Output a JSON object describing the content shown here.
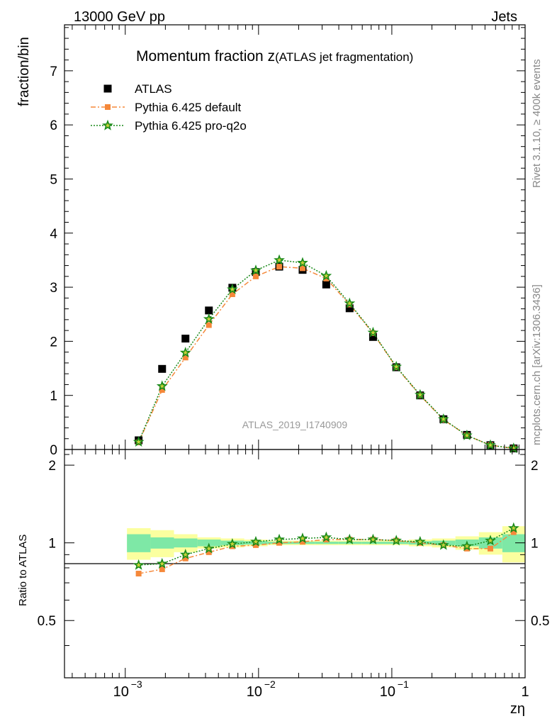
{
  "header": {
    "left": "13000 GeV pp",
    "right": "Jets"
  },
  "side_labels": {
    "rivet": "Rivet 3.1.10, ≥ 400k events",
    "mcplots": "mcplots.cern.ch [arXiv:1306.3436]"
  },
  "chart_data": [
    {
      "type": "scatter",
      "panel": "main",
      "title_main": "Momentum fraction z",
      "title_sub": "(ATLAS jet fragmentation)",
      "watermark": "ATLAS_2019_I1740909",
      "ylabel": "fraction/bin",
      "xlabel": "zη",
      "xscale": "log",
      "xlim": [
        0.00035,
        1.0
      ],
      "ylim": [
        0,
        7.85
      ],
      "yticks": [
        0,
        1,
        2,
        3,
        4,
        5,
        6,
        7
      ],
      "ytick_labels": [
        "0",
        "1",
        "2",
        "3",
        "4",
        "5",
        "6",
        "7"
      ],
      "x": [
        0.00126,
        0.00189,
        0.00283,
        0.00424,
        0.00636,
        0.00954,
        0.0143,
        0.0214,
        0.0322,
        0.0482,
        0.0723,
        0.108,
        0.163,
        0.244,
        0.366,
        0.549,
        0.82
      ],
      "legend_position": "top-left",
      "series": [
        {
          "name": "ATLAS",
          "color": "#000000",
          "marker": "square",
          "values": [
            0.17,
            1.49,
            2.05,
            2.57,
            2.99,
            3.28,
            3.38,
            3.32,
            3.05,
            2.61,
            2.08,
            1.52,
            1.0,
            0.56,
            0.27,
            0.08,
            0.02
          ]
        },
        {
          "name": "Pythia 6.425 default",
          "color": "#f5883a",
          "marker": "square",
          "line": "dashdot",
          "values": [
            0.13,
            1.1,
            1.7,
            2.3,
            2.87,
            3.2,
            3.38,
            3.35,
            3.16,
            2.68,
            2.15,
            1.52,
            1.0,
            0.55,
            0.26,
            0.08,
            0.02
          ]
        },
        {
          "name": "Pythia 6.425 pro-q2o",
          "color": "#1a8a1a",
          "marker": "star",
          "line": "dotted",
          "values": [
            0.14,
            1.17,
            1.79,
            2.41,
            2.96,
            3.31,
            3.5,
            3.45,
            3.21,
            2.7,
            2.16,
            1.53,
            1.01,
            0.56,
            0.26,
            0.08,
            0.02
          ]
        }
      ]
    },
    {
      "type": "line",
      "panel": "ratio",
      "ylabel": "Ratio to ATLAS",
      "xscale": "log",
      "xlim": [
        0.00035,
        1.0
      ],
      "ylim": [
        0.3,
        2.3
      ],
      "yticks": [
        0.5,
        1,
        2
      ],
      "ytick_labels": [
        "0.5",
        "1",
        "2"
      ],
      "xticks": [
        0.001,
        0.01,
        0.1,
        1
      ],
      "xtick_labels": [
        "10",
        "10",
        "10",
        "1"
      ],
      "xtick_exponents": [
        "−3",
        "−2",
        "−1",
        ""
      ],
      "x": [
        0.00126,
        0.00189,
        0.00283,
        0.00424,
        0.00636,
        0.00954,
        0.0143,
        0.0214,
        0.0322,
        0.0482,
        0.0723,
        0.108,
        0.163,
        0.244,
        0.366,
        0.549,
        0.82
      ],
      "x_edges": [
        0.00103,
        0.00155,
        0.00232,
        0.00348,
        0.00521,
        0.00782,
        0.0117,
        0.0176,
        0.0264,
        0.0396,
        0.0594,
        0.0891,
        0.134,
        0.2,
        0.3,
        0.45,
        0.675,
        1.0
      ],
      "band_inner": [
        0.08,
        0.05,
        0.04,
        0.03,
        0.02,
        0.015,
        0.01,
        0.01,
        0.01,
        0.01,
        0.01,
        0.01,
        0.015,
        0.02,
        0.03,
        0.05,
        0.08
      ],
      "band_outer": [
        0.14,
        0.12,
        0.08,
        0.05,
        0.04,
        0.03,
        0.02,
        0.02,
        0.02,
        0.02,
        0.02,
        0.02,
        0.03,
        0.04,
        0.06,
        0.1,
        0.16
      ],
      "band_colors": {
        "inner": "#7ee8a6",
        "outer": "#fbff9f"
      },
      "series": [
        {
          "name": "Pythia 6.425 default",
          "color": "#f5883a",
          "marker": "square",
          "line": "dashdot",
          "values": [
            0.76,
            0.79,
            0.87,
            0.92,
            0.97,
            0.98,
            1.0,
            1.01,
            1.03,
            1.03,
            1.03,
            1.02,
            1.0,
            0.98,
            0.95,
            0.95,
            1.1
          ]
        },
        {
          "name": "Pythia 6.425 pro-q2o",
          "color": "#1a8a1a",
          "marker": "star",
          "line": "dotted",
          "values": [
            0.82,
            0.83,
            0.9,
            0.95,
            0.99,
            1.01,
            1.03,
            1.04,
            1.05,
            1.03,
            1.03,
            1.02,
            1.01,
            0.98,
            0.97,
            1.02,
            1.14
          ]
        }
      ]
    }
  ]
}
